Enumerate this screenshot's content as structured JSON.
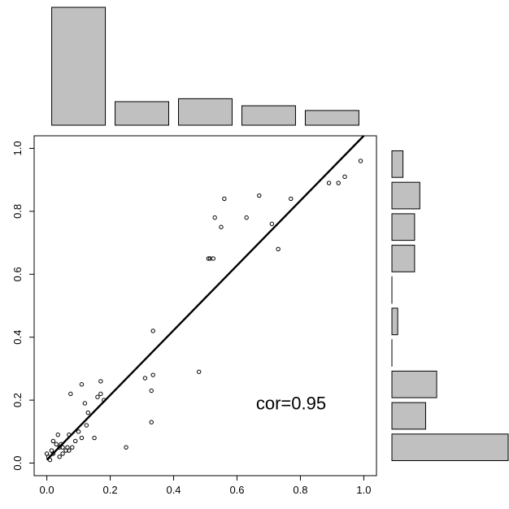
{
  "chart_data": [
    {
      "type": "scatter",
      "title": "",
      "xlabel": "",
      "ylabel": "",
      "xlim": [
        -0.04,
        1.04
      ],
      "ylim": [
        -0.04,
        1.04
      ],
      "x_ticks": [
        0.0,
        0.2,
        0.4,
        0.6,
        0.8,
        1.0
      ],
      "y_ticks": [
        0.0,
        0.2,
        0.4,
        0.6,
        0.8,
        1.0
      ],
      "x_tick_labels": [
        "0.0",
        "0.2",
        "0.4",
        "0.6",
        "0.8",
        "1.0"
      ],
      "y_tick_labels": [
        "0.0",
        "0.2",
        "0.4",
        "0.6",
        "0.8",
        "1.0"
      ],
      "grid": false,
      "legend": "none",
      "point_color": "#000000",
      "points": [
        [
          0.0,
          0.03
        ],
        [
          0.005,
          0.02
        ],
        [
          0.01,
          0.01
        ],
        [
          0.015,
          0.04
        ],
        [
          0.02,
          0.07
        ],
        [
          0.02,
          0.03
        ],
        [
          0.03,
          0.06
        ],
        [
          0.035,
          0.09
        ],
        [
          0.04,
          0.05
        ],
        [
          0.04,
          0.02
        ],
        [
          0.045,
          0.06
        ],
        [
          0.05,
          0.05
        ],
        [
          0.05,
          0.03
        ],
        [
          0.06,
          0.04
        ],
        [
          0.065,
          0.05
        ],
        [
          0.07,
          0.04
        ],
        [
          0.07,
          0.09
        ],
        [
          0.075,
          0.22
        ],
        [
          0.08,
          0.05
        ],
        [
          0.09,
          0.07
        ],
        [
          0.1,
          0.1
        ],
        [
          0.11,
          0.08
        ],
        [
          0.11,
          0.25
        ],
        [
          0.12,
          0.19
        ],
        [
          0.125,
          0.12
        ],
        [
          0.13,
          0.16
        ],
        [
          0.15,
          0.08
        ],
        [
          0.16,
          0.21
        ],
        [
          0.17,
          0.22
        ],
        [
          0.17,
          0.26
        ],
        [
          0.18,
          0.2
        ],
        [
          0.25,
          0.05
        ],
        [
          0.31,
          0.27
        ],
        [
          0.33,
          0.23
        ],
        [
          0.33,
          0.13
        ],
        [
          0.335,
          0.28
        ],
        [
          0.335,
          0.42
        ],
        [
          0.48,
          0.29
        ],
        [
          0.51,
          0.65
        ],
        [
          0.515,
          0.65
        ],
        [
          0.525,
          0.65
        ],
        [
          0.53,
          0.78
        ],
        [
          0.55,
          0.75
        ],
        [
          0.56,
          0.84
        ],
        [
          0.63,
          0.78
        ],
        [
          0.67,
          0.85
        ],
        [
          0.71,
          0.76
        ],
        [
          0.73,
          0.68
        ],
        [
          0.77,
          0.84
        ],
        [
          0.89,
          0.89
        ],
        [
          0.92,
          0.89
        ],
        [
          0.94,
          0.91
        ],
        [
          0.99,
          0.96
        ]
      ],
      "fit_line": {
        "x": [
          0.0,
          1.0
        ],
        "y": [
          0.01,
          1.04
        ]
      },
      "annotation": "cor=0.95"
    },
    {
      "type": "bar",
      "orientation": "vertical",
      "bin_edges": [
        0.0,
        0.2,
        0.4,
        0.6,
        0.8,
        1.0
      ],
      "values": [
        20,
        4,
        4.5,
        3.3,
        2.5
      ],
      "fill": "#c0c0c0",
      "edge": "#000000"
    },
    {
      "type": "bar",
      "orientation": "horizontal",
      "bin_edges": [
        0.0,
        0.1,
        0.2,
        0.3,
        0.4,
        0.5,
        0.6,
        0.7,
        0.8,
        0.9,
        1.0
      ],
      "values": [
        20,
        5.8,
        7.7,
        0,
        1,
        0,
        3.9,
        3.9,
        4.8,
        1.9
      ],
      "fill": "#c0c0c0",
      "edge": "#000000"
    }
  ]
}
